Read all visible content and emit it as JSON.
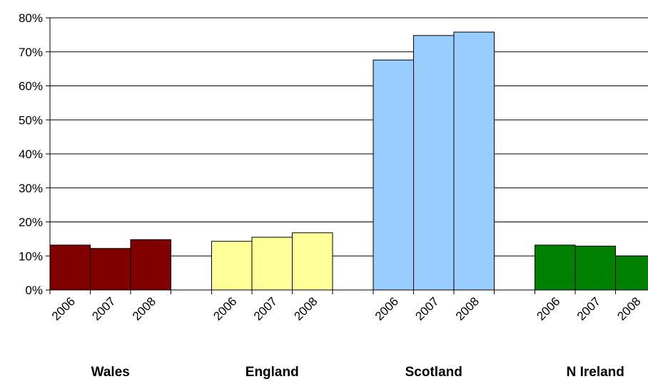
{
  "chart_data": {
    "type": "bar",
    "title": "",
    "xlabel": "",
    "ylabel": "",
    "ylim": [
      0,
      80
    ],
    "yticks": [
      "0%",
      "10%",
      "20%",
      "30%",
      "40%",
      "50%",
      "60%",
      "70%",
      "80%"
    ],
    "grid": true,
    "legend": "none",
    "groups": [
      {
        "name": "Wales",
        "color": "#800000",
        "categories": [
          "2006",
          "2007",
          "2008"
        ],
        "values": [
          13.2,
          12.2,
          14.8
        ]
      },
      {
        "name": "England",
        "color": "#ffff99",
        "categories": [
          "2006",
          "2007",
          "2008"
        ],
        "values": [
          14.3,
          15.5,
          16.8
        ]
      },
      {
        "name": "Scotland",
        "color": "#99ccff",
        "categories": [
          "2006",
          "2007",
          "2008"
        ],
        "values": [
          67.6,
          74.8,
          75.8
        ]
      },
      {
        "name": "N Ireland",
        "color": "#008000",
        "categories": [
          "2006",
          "2007",
          "2008"
        ],
        "values": [
          13.2,
          12.9,
          10.0
        ]
      }
    ]
  }
}
